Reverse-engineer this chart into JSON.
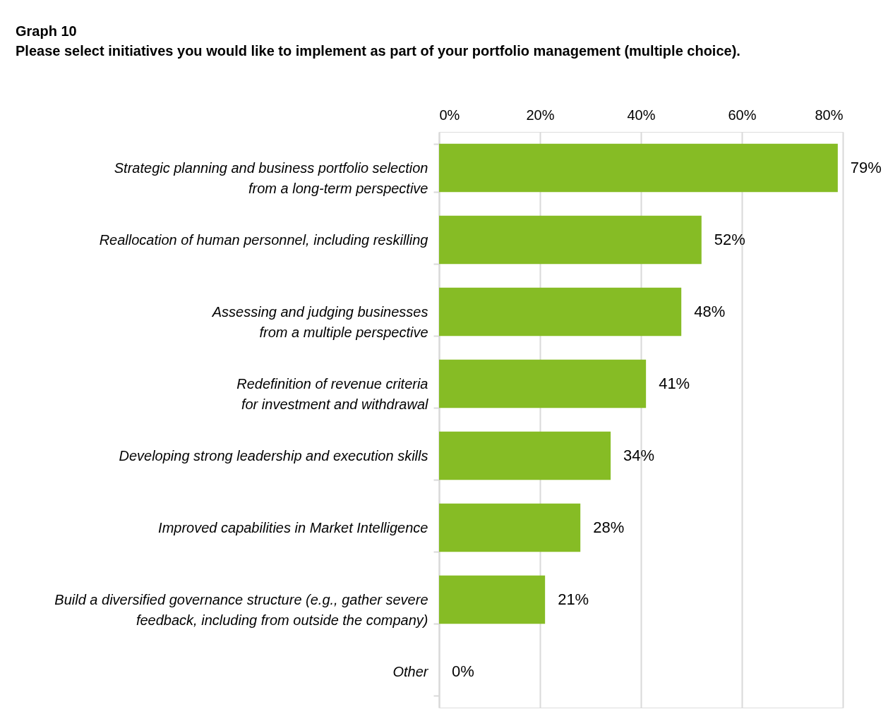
{
  "chart_data": {
    "type": "bar",
    "orientation": "horizontal",
    "title": "Graph 10",
    "subtitle": "Please select initiatives you would like to implement as part of your portfolio management (multiple choice).",
    "categories": [
      "Strategic planning and business portfolio selection\nfrom a long-term perspective",
      "Reallocation of human personnel, including reskilling",
      "Assessing and judging businesses\nfrom a multiple perspective",
      "Redefinition of revenue criteria\nfor investment and withdrawal",
      "Developing strong leadership and execution skills",
      "Improved capabilities in Market Intelligence",
      "Build a diversified governance structure (e.g., gather severe\nfeedback, including from outside the company)",
      "Other"
    ],
    "values": [
      79,
      52,
      48,
      41,
      34,
      28,
      21,
      0
    ],
    "value_labels": [
      "79%",
      "52%",
      "48%",
      "41%",
      "34%",
      "28%",
      "21%",
      "0%"
    ],
    "color": "#86bc25",
    "xlim": [
      0,
      80
    ],
    "xticks": [
      {
        "value": 0,
        "label": "0%"
      },
      {
        "value": 20,
        "label": "20%"
      },
      {
        "value": 40,
        "label": "40%"
      },
      {
        "value": 60,
        "label": "60%"
      },
      {
        "value": 80,
        "label": "80%"
      }
    ],
    "grid": "x"
  }
}
